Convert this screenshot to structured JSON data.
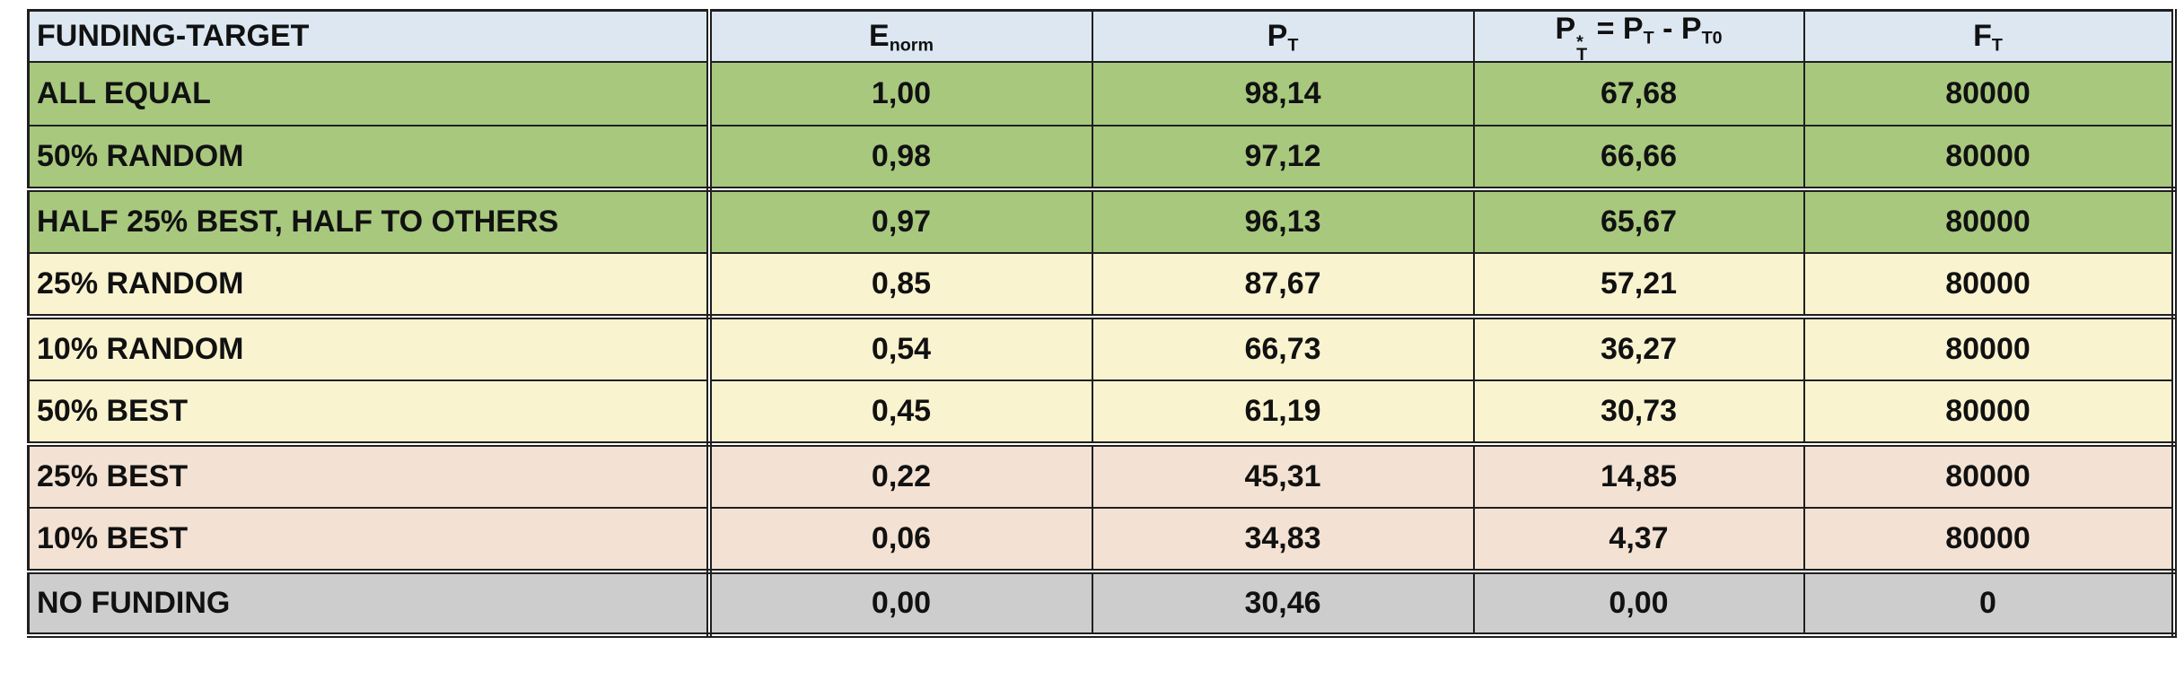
{
  "page": {
    "background": "#ffffff"
  },
  "colors": {
    "header_bg": "#dce7f2",
    "green_bg": "#a8c87e",
    "yellow_bg": "#faf3d0",
    "pink_bg": "#f3e2d3",
    "gray_bg": "#cdcdcd",
    "border": "#1f1f1f",
    "text": "#111111"
  },
  "table": {
    "columns": [
      {
        "key": "funding_target",
        "align": "left",
        "label_parts": [
          {
            "t": "FUNDING-TARGET"
          }
        ]
      },
      {
        "key": "e_norm",
        "align": "center",
        "label_parts": [
          {
            "t": "E"
          },
          {
            "sub": "norm"
          }
        ]
      },
      {
        "key": "p_t",
        "align": "center",
        "label_parts": [
          {
            "t": "P"
          },
          {
            "sub": "T"
          }
        ]
      },
      {
        "key": "p_star_t",
        "align": "center",
        "label_parts": [
          {
            "t": "P"
          },
          {
            "sup": "*",
            "sub": "T"
          },
          {
            "t": " = P"
          },
          {
            "sub": "T"
          },
          {
            "t": " - P"
          },
          {
            "sub": "T0"
          }
        ]
      },
      {
        "key": "f_t",
        "align": "center",
        "label_parts": [
          {
            "t": "F"
          },
          {
            "sub": "T"
          }
        ]
      }
    ],
    "rows": [
      {
        "group": "green",
        "cells": [
          "ALL EQUAL",
          "1,00",
          "98,14",
          "67,68",
          "80000"
        ]
      },
      {
        "group": "green",
        "cells": [
          "50% RANDOM",
          "0,98",
          "97,12",
          "66,66",
          "80000"
        ]
      },
      {
        "group": "green",
        "cells": [
          "HALF 25% BEST, HALF TO OTHERS",
          "0,97",
          "96,13",
          "65,67",
          "80000"
        ]
      },
      {
        "group": "yellow",
        "cells": [
          "25% RANDOM",
          "0,85",
          "87,67",
          "57,21",
          "80000"
        ]
      },
      {
        "group": "yellow",
        "cells": [
          "10% RANDOM",
          "0,54",
          "66,73",
          "36,27",
          "80000"
        ]
      },
      {
        "group": "yellow",
        "cells": [
          "50% BEST",
          "0,45",
          "61,19",
          "30,73",
          "80000"
        ]
      },
      {
        "group": "pink",
        "cells": [
          "25% BEST",
          "0,22",
          "45,31",
          "14,85",
          "80000"
        ]
      },
      {
        "group": "pink",
        "cells": [
          "10% BEST",
          "0,06",
          "34,83",
          "4,37",
          "80000"
        ]
      },
      {
        "group": "gray",
        "cells": [
          "NO FUNDING",
          "0,00",
          "30,46",
          "0,00",
          "0"
        ]
      }
    ]
  },
  "chart_data": {
    "type": "table",
    "columns": [
      "FUNDING-TARGET",
      "E_norm",
      "P_T",
      "P*_T = P_T - P_T0",
      "F_T"
    ],
    "rows": [
      [
        "ALL EQUAL",
        1.0,
        98.14,
        67.68,
        80000
      ],
      [
        "50% RANDOM",
        0.98,
        97.12,
        66.66,
        80000
      ],
      [
        "HALF 25% BEST, HALF TO OTHERS",
        0.97,
        96.13,
        65.67,
        80000
      ],
      [
        "25% RANDOM",
        0.85,
        87.67,
        57.21,
        80000
      ],
      [
        "10% RANDOM",
        0.54,
        66.73,
        36.27,
        80000
      ],
      [
        "50% BEST",
        0.45,
        61.19,
        30.73,
        80000
      ],
      [
        "25% BEST",
        0.22,
        45.31,
        14.85,
        80000
      ],
      [
        "10% BEST",
        0.06,
        34.83,
        4.37,
        80000
      ],
      [
        "NO FUNDING",
        0.0,
        30.46,
        0.0,
        0
      ]
    ],
    "row_groups": [
      "green",
      "green",
      "green",
      "yellow",
      "yellow",
      "yellow",
      "pink",
      "pink",
      "gray"
    ]
  }
}
